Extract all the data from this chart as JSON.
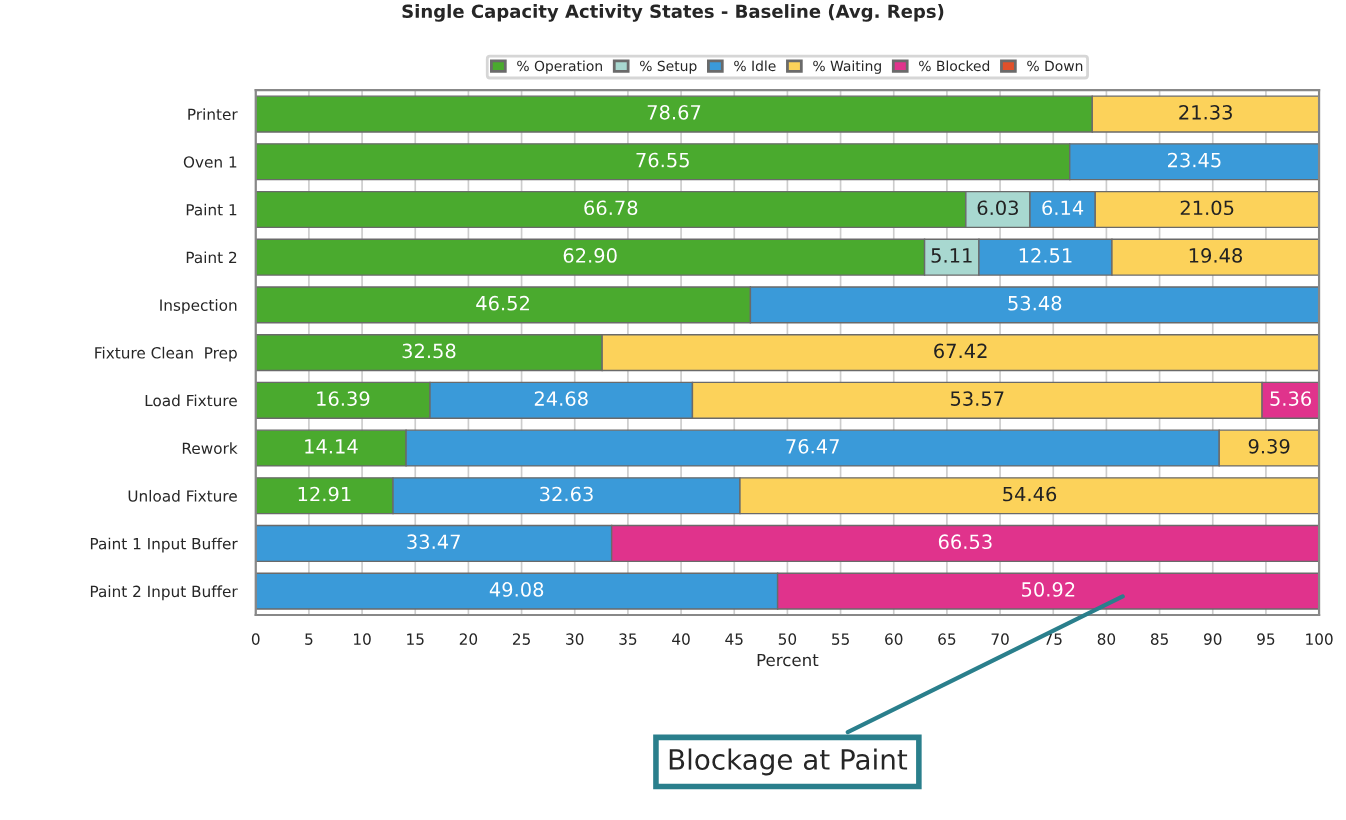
{
  "chart_data": {
    "type": "bar",
    "orientation": "horizontal",
    "stacked": true,
    "title": "Single Capacity Activity States - Baseline (Avg. Reps)",
    "xlabel": "Percent",
    "categories": [
      "Printer",
      "Oven 1",
      "Paint 1",
      "Paint 2",
      "Inspection",
      "Fixture Clean  Prep",
      "Load Fixture",
      "Rework",
      "Unload Fixture",
      "Paint 1 Input Buffer",
      "Paint 2 Input Buffer"
    ],
    "series": [
      {
        "name": "% Operation",
        "color": "#4aaa2e",
        "values": [
          78.67,
          76.55,
          66.78,
          62.9,
          46.52,
          32.58,
          16.39,
          14.14,
          12.91,
          null,
          null
        ],
        "value_labels": [
          "78.67",
          "76.55",
          "66.78",
          "62.90",
          "46.52",
          "32.58",
          "16.39",
          "14.14",
          "12.91",
          null,
          null
        ]
      },
      {
        "name": "% Setup",
        "color": "#a8d8d0",
        "values": [
          null,
          null,
          6.03,
          5.11,
          null,
          null,
          null,
          null,
          null,
          null,
          null
        ],
        "value_labels": [
          null,
          null,
          "6.03",
          "5.11",
          null,
          null,
          null,
          null,
          null,
          null,
          null
        ]
      },
      {
        "name": "% Idle",
        "color": "#3a9ad9",
        "values": [
          null,
          23.45,
          6.14,
          12.51,
          53.48,
          null,
          24.68,
          76.47,
          32.63,
          33.47,
          49.08
        ],
        "value_labels": [
          null,
          "23.45",
          "6.14",
          "12.51",
          "53.48",
          null,
          "24.68",
          "76.47",
          "32.63",
          "33.47",
          "49.08"
        ]
      },
      {
        "name": "% Waiting",
        "color": "#fcd25a",
        "values": [
          21.33,
          null,
          21.05,
          19.48,
          null,
          67.42,
          53.57,
          9.39,
          54.46,
          null,
          null
        ],
        "value_labels": [
          "21.33",
          null,
          "21.05",
          "19.48",
          null,
          "67.42",
          "53.57",
          "9.39",
          "54.46",
          null,
          null
        ]
      },
      {
        "name": "% Blocked",
        "color": "#e0338c",
        "values": [
          null,
          null,
          null,
          null,
          null,
          null,
          5.36,
          null,
          null,
          66.53,
          50.92
        ],
        "value_labels": [
          null,
          null,
          null,
          null,
          null,
          null,
          "5.36",
          null,
          null,
          "66.53",
          "50.92"
        ]
      },
      {
        "name": "% Down",
        "color": "#e0502a",
        "values": [
          null,
          null,
          null,
          null,
          null,
          null,
          null,
          null,
          null,
          null,
          null
        ]
      }
    ],
    "xlim": [
      0,
      100
    ],
    "xticks": [
      0,
      5,
      10,
      15,
      20,
      25,
      30,
      35,
      40,
      45,
      50,
      55,
      60,
      65,
      70,
      75,
      80,
      85,
      90,
      95,
      100
    ],
    "grid": "x",
    "legend": "top",
    "annotations": [
      "Blockage at Paint"
    ]
  }
}
